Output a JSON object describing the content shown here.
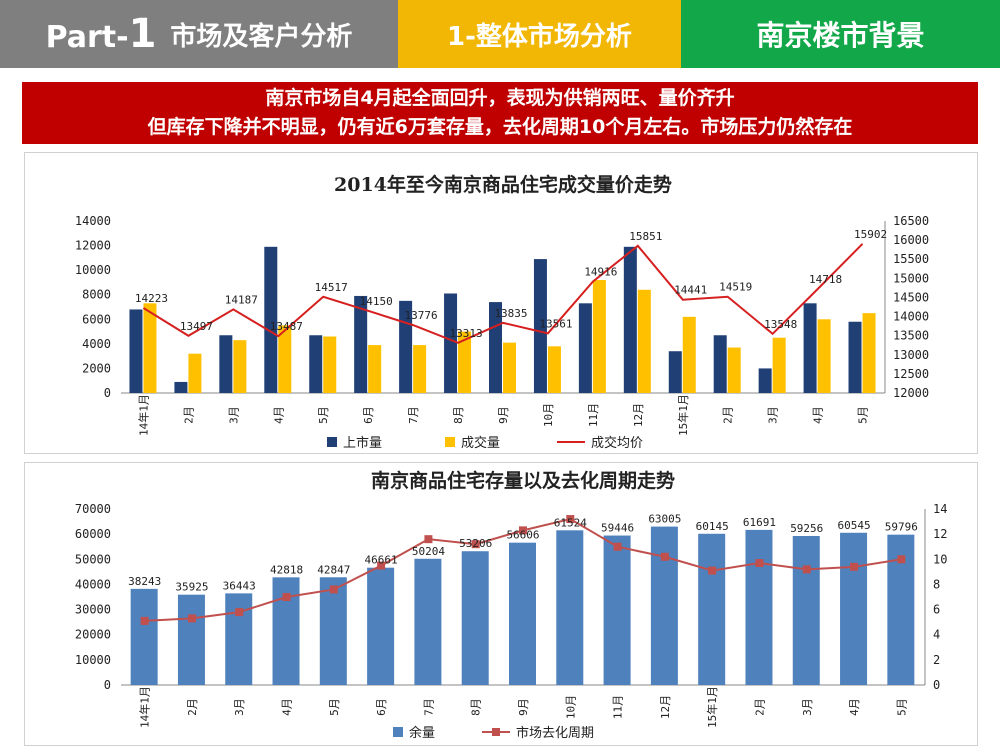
{
  "header": {
    "part_prefix": "Part-",
    "part_number": "1",
    "section": "市场及客户分析",
    "subsection": "1-整体市场分析",
    "topic": "南京楼市背景"
  },
  "banner": {
    "line1": "南京市场自4月起全面回升，表现为供销两旺、量价齐升",
    "line2": "但库存下降并不明显，仍有近6万套存量，去化周期10个月左右。市场压力仍然存在"
  },
  "colors": {
    "header_gray": "#7f7f7f",
    "header_yellow": "#f2b705",
    "header_green": "#12a84a",
    "banner_red": "#c00000",
    "supply_bar": "#1f3f75",
    "deal_bar": "#ffc000",
    "price_line": "#d62020",
    "stock_bar": "#4f81bd",
    "cycle_line": "#c0504d"
  },
  "chart_data": [
    {
      "type": "bar",
      "title": "2014年至今南京商品住宅成交量价走势",
      "categories": [
        "14年1月",
        "2月",
        "3月",
        "4月",
        "5月",
        "6月",
        "7月",
        "8月",
        "9月",
        "10月",
        "11月",
        "12月",
        "15年1月",
        "2月",
        "3月",
        "4月",
        "5月"
      ],
      "series": [
        {
          "name": "上市量",
          "type": "bar",
          "axis": "left",
          "values": [
            6800,
            900,
            4700,
            11900,
            4700,
            7900,
            7500,
            8100,
            7400,
            10900,
            7300,
            11900,
            3400,
            4700,
            2000,
            7300,
            5800
          ]
        },
        {
          "name": "成交量",
          "type": "bar",
          "axis": "left",
          "values": [
            7300,
            3200,
            4300,
            5500,
            4600,
            3900,
            3900,
            5000,
            4100,
            3800,
            9200,
            8400,
            6200,
            3700,
            4500,
            6000,
            6500
          ]
        },
        {
          "name": "成交均价",
          "type": "line",
          "axis": "right",
          "values": [
            14223,
            13497,
            14187,
            13487,
            14517,
            14150,
            13776,
            13313,
            13835,
            13561,
            14916,
            15851,
            14441,
            14519,
            13548,
            14718,
            15902
          ]
        }
      ],
      "data_labels": [
        "14223",
        "13497",
        "14187",
        "13487",
        "14517",
        "14150",
        "13776",
        "13313",
        "13835",
        "13561",
        "14916",
        "15851",
        "14441",
        "14519",
        "13548",
        "14718",
        "15902"
      ],
      "yleft_ticks": [
        "0",
        "2000",
        "4000",
        "6000",
        "8000",
        "10000",
        "12000",
        "14000"
      ],
      "yright_ticks": [
        "12000",
        "12500",
        "13000",
        "13500",
        "14000",
        "14500",
        "15000",
        "15500",
        "16000",
        "16500"
      ],
      "ylim_left": [
        0,
        14000
      ],
      "ylim_right": [
        12000,
        16500
      ]
    },
    {
      "type": "bar",
      "title": "南京商品住宅存量以及去化周期走势",
      "categories": [
        "14年1月",
        "2月",
        "3月",
        "4月",
        "5月",
        "6月",
        "7月",
        "8月",
        "9月",
        "10月",
        "11月",
        "12月",
        "15年1月",
        "2月",
        "3月",
        "4月",
        "5月"
      ],
      "series": [
        {
          "name": "余量",
          "type": "bar",
          "axis": "left",
          "values": [
            38243,
            35925,
            36443,
            42818,
            42847,
            46661,
            50204,
            53206,
            56606,
            61524,
            59446,
            63005,
            60145,
            61691,
            59256,
            60545,
            59796
          ]
        },
        {
          "name": "市场去化周期",
          "type": "line",
          "axis": "right",
          "values": [
            5.1,
            5.3,
            5.8,
            7.0,
            7.6,
            9.5,
            11.6,
            11.2,
            12.3,
            13.2,
            11.0,
            10.2,
            9.1,
            9.7,
            9.2,
            9.4,
            10.0
          ]
        }
      ],
      "data_labels": [
        "38243",
        "35925",
        "36443",
        "42818",
        "42847",
        "46661",
        "50204",
        "53206",
        "56606",
        "61524",
        "59446",
        "63005",
        "60145",
        "61691",
        "59256",
        "60545",
        "59796"
      ],
      "yleft_ticks": [
        "0",
        "10000",
        "20000",
        "30000",
        "40000",
        "50000",
        "60000",
        "70000"
      ],
      "yright_ticks": [
        "0",
        "2",
        "4",
        "6",
        "8",
        "10",
        "12",
        "14"
      ],
      "ylim_left": [
        0,
        70000
      ],
      "ylim_right": [
        0,
        14
      ]
    }
  ]
}
